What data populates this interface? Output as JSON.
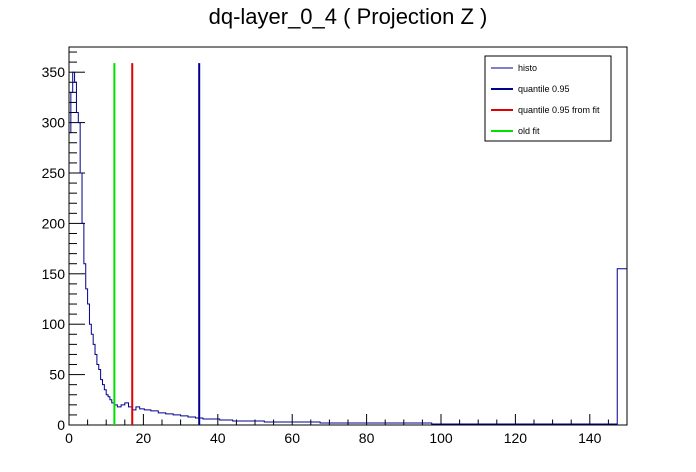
{
  "chart_data": {
    "type": "line",
    "title": "dq-layer_0_4 ( Projection Z )",
    "xlim": [
      0,
      150
    ],
    "ylim": [
      0,
      375
    ],
    "xticks": [
      0,
      20,
      40,
      60,
      80,
      100,
      120,
      140
    ],
    "yticks": [
      0,
      50,
      100,
      150,
      200,
      250,
      300,
      350
    ],
    "grid": false,
    "legend_position": "top-right",
    "legend": [
      {
        "label": "histo",
        "color": "#00008b",
        "style": "thin"
      },
      {
        "label": "quantile 0.95",
        "color": "#00008b",
        "style": "thick"
      },
      {
        "label": "quantile 0.95 from fit",
        "color": "#e00000",
        "style": "thick"
      },
      {
        "label": "old fit",
        "color": "#00e000",
        "style": "thick"
      }
    ],
    "series": [
      {
        "name": "histo",
        "color": "#00008b",
        "x": [
          0.25,
          0.75,
          1.25,
          1.75,
          2.25,
          2.75,
          3.25,
          3.75,
          4.25,
          4.75,
          5.25,
          5.75,
          6.25,
          6.75,
          7.25,
          7.75,
          8.25,
          8.75,
          9.25,
          9.75,
          10.25,
          10.75,
          11.25,
          11.75,
          12.5,
          13.5,
          14.5,
          15.5,
          16.5,
          17.5,
          18.5,
          19.5,
          21,
          23,
          25,
          27,
          29,
          31,
          33,
          35,
          37,
          39,
          42,
          46,
          50,
          55,
          60,
          65,
          70,
          75,
          80,
          85,
          90,
          95,
          100,
          105,
          110,
          115,
          120,
          125,
          130,
          135,
          140,
          145,
          149.75
        ],
        "values": [
          290,
          330,
          350,
          340,
          310,
          300,
          250,
          200,
          160,
          135,
          120,
          100,
          90,
          80,
          70,
          60,
          55,
          45,
          40,
          35,
          30,
          28,
          25,
          22,
          20,
          18,
          20,
          22,
          18,
          15,
          18,
          16,
          15,
          14,
          12,
          11,
          10,
          9,
          8,
          7,
          6,
          6,
          5,
          4,
          4,
          3,
          3,
          3,
          2,
          2,
          2,
          2,
          2,
          2,
          1,
          1,
          1,
          1,
          1,
          1,
          1,
          1,
          1,
          1,
          155
        ]
      }
    ],
    "markers": [
      {
        "name": "quantile 0.95",
        "x": 35,
        "y_top": 359,
        "color": "#00008b"
      },
      {
        "name": "quantile 0.95 from fit",
        "x": 17,
        "y_top": 359,
        "color": "#e00000"
      },
      {
        "name": "old fit",
        "x": 12.2,
        "y_top": 359,
        "color": "#00e000"
      }
    ]
  }
}
